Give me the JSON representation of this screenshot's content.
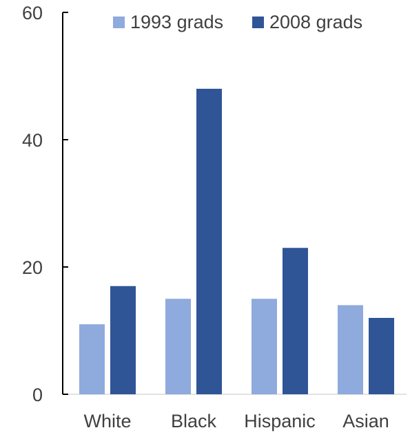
{
  "chart_data": {
    "type": "bar",
    "title": "",
    "xlabel": "",
    "ylabel": "",
    "categories": [
      "White",
      "Black",
      "Hispanic",
      "Asian"
    ],
    "series": [
      {
        "name": "1993 grads",
        "values": [
          11,
          15,
          15,
          14
        ],
        "color": "#8faadc"
      },
      {
        "name": "2008 grads",
        "values": [
          17,
          48,
          23,
          12
        ],
        "color": "#2f5597"
      }
    ],
    "ylim": [
      0,
      60
    ],
    "yticks": [
      0,
      20,
      40,
      60
    ],
    "grid": false,
    "legend_position": "top"
  }
}
